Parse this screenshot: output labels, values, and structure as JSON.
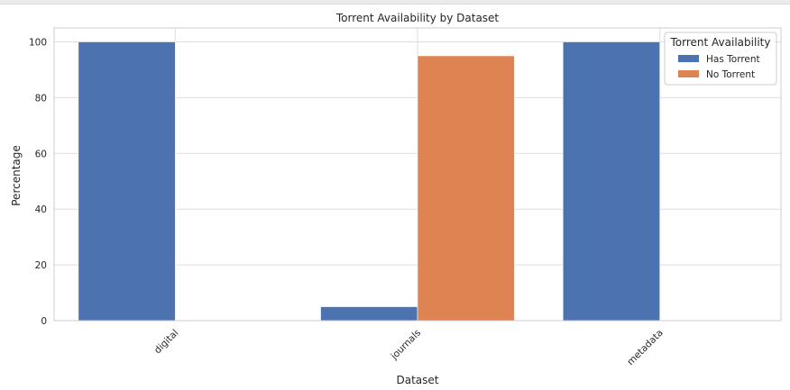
{
  "chart_data": {
    "type": "bar",
    "title": "Torrent Availability by Dataset",
    "xlabel": "Dataset",
    "ylabel": "Percentage",
    "categories": [
      "digital",
      "journals",
      "metadata"
    ],
    "series": [
      {
        "name": "Has Torrent",
        "values": [
          100,
          5,
          100
        ],
        "color": "#4c72b0"
      },
      {
        "name": "No Torrent",
        "values": [
          0,
          95,
          0
        ],
        "color": "#dd8452"
      }
    ],
    "ylim": [
      0,
      105
    ],
    "yticks": [
      0,
      20,
      40,
      60,
      80,
      100
    ],
    "legend": {
      "title": "Torrent Availability",
      "position": "top-right"
    },
    "grid": true,
    "xtick_rotation": 45
  }
}
